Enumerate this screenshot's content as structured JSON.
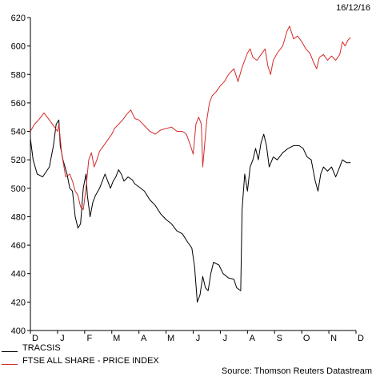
{
  "date_label": "16/12/16",
  "source": "Source: Thomson Reuters Datastream",
  "chart_data": {
    "type": "line",
    "title": "",
    "xlabel": "",
    "ylabel": "",
    "ylim": [
      400,
      620
    ],
    "y_ticks": [
      "400",
      "420",
      "440",
      "460",
      "480",
      "500",
      "520",
      "540",
      "560",
      "580",
      "600",
      "620"
    ],
    "x_ticks": [
      "D",
      "J",
      "F",
      "M",
      "A",
      "M",
      "J",
      "J",
      "A",
      "S",
      "O",
      "N",
      "D"
    ],
    "grid": false,
    "legend": "bottom-left",
    "series": [
      {
        "name": "TRACSIS",
        "color": "#000000",
        "values": [
          [
            0,
            535
          ],
          [
            0.1,
            520
          ],
          [
            0.25,
            510
          ],
          [
            0.45,
            508
          ],
          [
            0.7,
            515
          ],
          [
            0.85,
            530
          ],
          [
            0.95,
            545
          ],
          [
            1.05,
            548
          ],
          [
            1.1,
            530
          ],
          [
            1.2,
            520
          ],
          [
            1.35,
            510
          ],
          [
            1.45,
            500
          ],
          [
            1.55,
            498
          ],
          [
            1.65,
            480
          ],
          [
            1.75,
            472
          ],
          [
            1.85,
            475
          ],
          [
            1.95,
            500
          ],
          [
            2.05,
            510
          ],
          [
            2.1,
            495
          ],
          [
            2.2,
            480
          ],
          [
            2.3,
            490
          ],
          [
            2.4,
            495
          ],
          [
            2.55,
            500
          ],
          [
            2.65,
            505
          ],
          [
            2.75,
            510
          ],
          [
            2.85,
            505
          ],
          [
            2.95,
            500
          ],
          [
            3.05,
            505
          ],
          [
            3.15,
            508
          ],
          [
            3.25,
            513
          ],
          [
            3.35,
            510
          ],
          [
            3.45,
            505
          ],
          [
            3.6,
            508
          ],
          [
            3.75,
            506
          ],
          [
            3.85,
            503
          ],
          [
            4.0,
            501
          ],
          [
            4.2,
            498
          ],
          [
            4.4,
            492
          ],
          [
            4.6,
            488
          ],
          [
            4.8,
            482
          ],
          [
            5.0,
            478
          ],
          [
            5.2,
            475
          ],
          [
            5.4,
            470
          ],
          [
            5.6,
            468
          ],
          [
            5.8,
            462
          ],
          [
            5.95,
            458
          ],
          [
            6.05,
            445
          ],
          [
            6.15,
            420
          ],
          [
            6.25,
            425
          ],
          [
            6.35,
            438
          ],
          [
            6.45,
            430
          ],
          [
            6.55,
            428
          ],
          [
            6.65,
            440
          ],
          [
            6.75,
            448
          ],
          [
            6.95,
            446
          ],
          [
            7.1,
            440
          ],
          [
            7.3,
            437
          ],
          [
            7.5,
            436
          ],
          [
            7.6,
            430
          ],
          [
            7.75,
            428
          ],
          [
            7.8,
            485
          ],
          [
            7.9,
            510
          ],
          [
            8.0,
            498
          ],
          [
            8.1,
            515
          ],
          [
            8.2,
            520
          ],
          [
            8.3,
            528
          ],
          [
            8.4,
            520
          ],
          [
            8.5,
            532
          ],
          [
            8.6,
            538
          ],
          [
            8.7,
            530
          ],
          [
            8.8,
            515
          ],
          [
            8.95,
            522
          ],
          [
            9.1,
            520
          ],
          [
            9.3,
            525
          ],
          [
            9.5,
            528
          ],
          [
            9.7,
            530
          ],
          [
            9.9,
            530
          ],
          [
            10.05,
            528
          ],
          [
            10.2,
            522
          ],
          [
            10.35,
            520
          ],
          [
            10.5,
            505
          ],
          [
            10.6,
            498
          ],
          [
            10.7,
            510
          ],
          [
            10.8,
            515
          ],
          [
            10.95,
            512
          ],
          [
            11.1,
            515
          ],
          [
            11.25,
            508
          ],
          [
            11.4,
            515
          ],
          [
            11.5,
            520
          ],
          [
            11.65,
            518
          ],
          [
            11.8,
            518
          ]
        ]
      },
      {
        "name": "FTSE ALL SHARE - PRICE INDEX",
        "color": "#d42b2b",
        "values": [
          [
            0,
            540
          ],
          [
            0.15,
            545
          ],
          [
            0.3,
            548
          ],
          [
            0.5,
            553
          ],
          [
            0.7,
            548
          ],
          [
            0.85,
            544
          ],
          [
            1.0,
            540
          ],
          [
            1.05,
            545
          ],
          [
            1.15,
            525
          ],
          [
            1.3,
            508
          ],
          [
            1.45,
            510
          ],
          [
            1.55,
            505
          ],
          [
            1.65,
            498
          ],
          [
            1.75,
            495
          ],
          [
            1.85,
            487
          ],
          [
            1.95,
            485
          ],
          [
            2.05,
            500
          ],
          [
            2.15,
            520
          ],
          [
            2.25,
            525
          ],
          [
            2.35,
            515
          ],
          [
            2.45,
            520
          ],
          [
            2.55,
            526
          ],
          [
            2.7,
            530
          ],
          [
            2.85,
            534
          ],
          [
            3.0,
            538
          ],
          [
            3.1,
            542
          ],
          [
            3.25,
            545
          ],
          [
            3.4,
            548
          ],
          [
            3.55,
            552
          ],
          [
            3.7,
            555
          ],
          [
            3.85,
            549
          ],
          [
            4.0,
            548
          ],
          [
            4.2,
            544
          ],
          [
            4.4,
            540
          ],
          [
            4.6,
            538
          ],
          [
            4.8,
            541
          ],
          [
            5.0,
            542
          ],
          [
            5.2,
            543
          ],
          [
            5.4,
            540
          ],
          [
            5.6,
            540
          ],
          [
            5.75,
            538
          ],
          [
            5.9,
            530
          ],
          [
            6.0,
            524
          ],
          [
            6.1,
            545
          ],
          [
            6.2,
            550
          ],
          [
            6.3,
            545
          ],
          [
            6.35,
            515
          ],
          [
            6.5,
            548
          ],
          [
            6.6,
            560
          ],
          [
            6.7,
            565
          ],
          [
            6.85,
            568
          ],
          [
            7.0,
            572
          ],
          [
            7.15,
            575
          ],
          [
            7.3,
            580
          ],
          [
            7.5,
            584
          ],
          [
            7.65,
            575
          ],
          [
            7.8,
            585
          ],
          [
            7.9,
            590
          ],
          [
            8.0,
            595
          ],
          [
            8.1,
            598
          ],
          [
            8.2,
            592
          ],
          [
            8.35,
            590
          ],
          [
            8.5,
            594
          ],
          [
            8.65,
            598
          ],
          [
            8.75,
            586
          ],
          [
            8.85,
            580
          ],
          [
            8.95,
            590
          ],
          [
            9.1,
            595
          ],
          [
            9.3,
            600
          ],
          [
            9.45,
            610
          ],
          [
            9.55,
            614
          ],
          [
            9.7,
            605
          ],
          [
            9.85,
            607
          ],
          [
            10.0,
            603
          ],
          [
            10.15,
            598
          ],
          [
            10.3,
            595
          ],
          [
            10.45,
            588
          ],
          [
            10.55,
            584
          ],
          [
            10.65,
            592
          ],
          [
            10.8,
            594
          ],
          [
            10.95,
            590
          ],
          [
            11.1,
            593
          ],
          [
            11.25,
            590
          ],
          [
            11.4,
            594
          ],
          [
            11.5,
            603
          ],
          [
            11.6,
            600
          ],
          [
            11.7,
            604
          ],
          [
            11.8,
            606
          ]
        ]
      }
    ]
  }
}
